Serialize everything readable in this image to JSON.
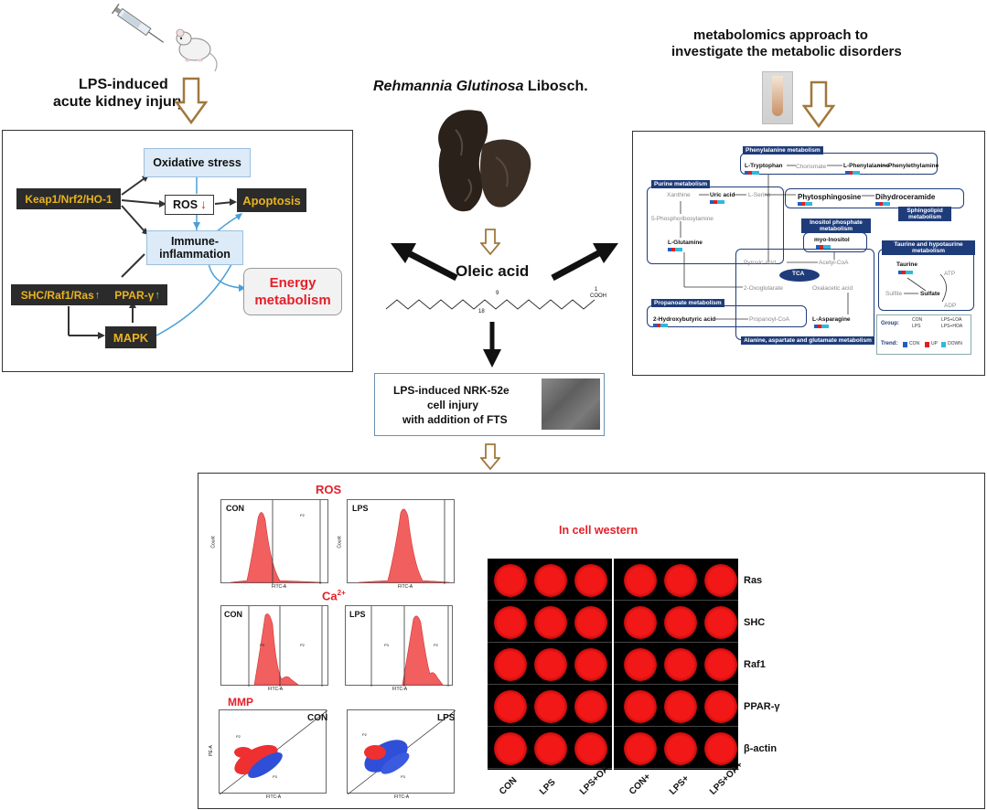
{
  "top_left": {
    "line1": "LPS-induced",
    "line2": "acute kidney injury"
  },
  "center": {
    "herb_name_italic": "Rehmannia Glutinosa",
    "herb_name_rest": " Libosch.",
    "compound": "Oleic acid"
  },
  "top_right": {
    "line1": "metabolomics approach to",
    "line2": "investigate the metabolic disorders"
  },
  "pathway": {
    "oxidative": "Oxidative stress",
    "ros": "ROS",
    "apoptosis": "Apoptosis",
    "keap": "Keap1/Nrf2/HO-1",
    "immune": "Immune-inflammation",
    "shc": "SHC/Raf1/Ras",
    "ppar": "PPAR-γ",
    "mapk": "MAPK",
    "energy": "Energy metabolism"
  },
  "metabolism": {
    "phenylalanine_title": "Phenylalanine metabolism",
    "l_tryptophan": "L-Tryptophan",
    "chorismate": "Chorismate",
    "l_phenylalanine": "L-Phenylalanine",
    "phenylethylamine": "Phenylethylamine",
    "purine_title": "Purine metabolism",
    "xanthine": "Xanthine",
    "uric_acid": "Uric acid",
    "l_serine": "L-Serine",
    "phytosphingosine": "Phytosphingosine",
    "dihydroceramide": "Dihydroceramide",
    "sphingolipid": "Sphingolipid metabolism",
    "phosphoribosylamine": "5-Phosphoribosylamine",
    "inositol_title": "Inositol phosphate metabolism",
    "myo_inositol": "myo-Inositol",
    "l_glutamine": "L-Glutamine",
    "pyruvic": "Pyruvic acid",
    "acetyl": "Acetyl-CoA",
    "tca": "TCA",
    "oxoglutarate": "2-Oxoglutarate",
    "oxalacetic": "Oxalacetic acid",
    "taurine_title": "Taurine and hypotaurine metabolism",
    "taurine": "Taurine",
    "atp": "ATP",
    "sulfite": "Sulfite",
    "sulfate": "Sulfate",
    "adp": "ADP",
    "propanoate_title": "Propanoate metabolism",
    "hydroxybutyric": "2-Hydroxybutyric acid",
    "propanoyl": "Propanoyl-CoA",
    "asparagine": "L-Asparagine",
    "alanine_title": "Alanine, aspartate and glutamate metabolism",
    "legend_group": "Group:",
    "legend_con": "CON",
    "legend_lps": "LPS",
    "legend_lpsloa": "LPS+LOA",
    "legend_lpshoa": "LPS+HOA",
    "legend_trend": "Trend:",
    "legend_trend_con": "CON",
    "legend_up": "UP",
    "legend_down": "DOWN"
  },
  "structure": {
    "num18": "18",
    "num9": "9",
    "num1": "1",
    "cooh": "COOH"
  },
  "cell": {
    "line1": "LPS-induced  NRK-52e",
    "line2": "cell injury",
    "line3": "with addition of FTS"
  },
  "results": {
    "ros_title": "ROS",
    "ca_title": "Ca",
    "ca_sup": "2+",
    "mmp_title": "MMP",
    "con": "CON",
    "lps": "LPS",
    "in_cell_western": "In cell western",
    "fitc": "FITC-A",
    "count": "Count",
    "pe": "PE-A",
    "p2": "P2",
    "p3": "P3",
    "rows": [
      "Ras",
      "SHC",
      "Raf1",
      "PPAR-γ",
      "β-actin"
    ],
    "cols": [
      "CON",
      "LPS",
      "LPS+OA",
      "CON+",
      "LPS+",
      "LPS+OA+"
    ]
  }
}
